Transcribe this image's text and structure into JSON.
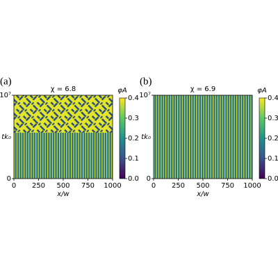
{
  "chart_data": [
    {
      "type": "heatmap",
      "panel_label": "(a)",
      "title": "χ = 6.8",
      "xlabel": "x/w",
      "ylabel": "tk₀",
      "xlim": [
        0,
        1000
      ],
      "xticks": [
        0,
        250,
        500,
        750,
        1000
      ],
      "ylim": [
        0,
        10000000
      ],
      "yticks": [
        0,
        {
          "value": 10000000,
          "label": "10⁷"
        }
      ],
      "colorbar": {
        "label": "φA",
        "lim": [
          0,
          0.4
        ],
        "ticks": [
          {
            "value": 0,
            "label": "0.0"
          },
          0.1,
          0.2,
          0.3,
          0.4
        ]
      }
    },
    {
      "type": "heatmap",
      "panel_label": "(b)",
      "title": "χ = 6.9",
      "xlabel": "x/w",
      "ylabel": "tk₀",
      "xlim": [
        0,
        1000
      ],
      "xticks": [
        0,
        250,
        500,
        750,
        1000
      ],
      "ylim": [
        0,
        10000000
      ],
      "yticks": [
        0,
        {
          "value": 10000000,
          "label": "10⁷"
        }
      ],
      "colorbar": {
        "label": "φA",
        "lim": [
          0,
          0.4
        ],
        "ticks": [
          {
            "value": 0,
            "label": "0.0"
          },
          0.1,
          0.2,
          0.3,
          0.4
        ]
      }
    }
  ]
}
